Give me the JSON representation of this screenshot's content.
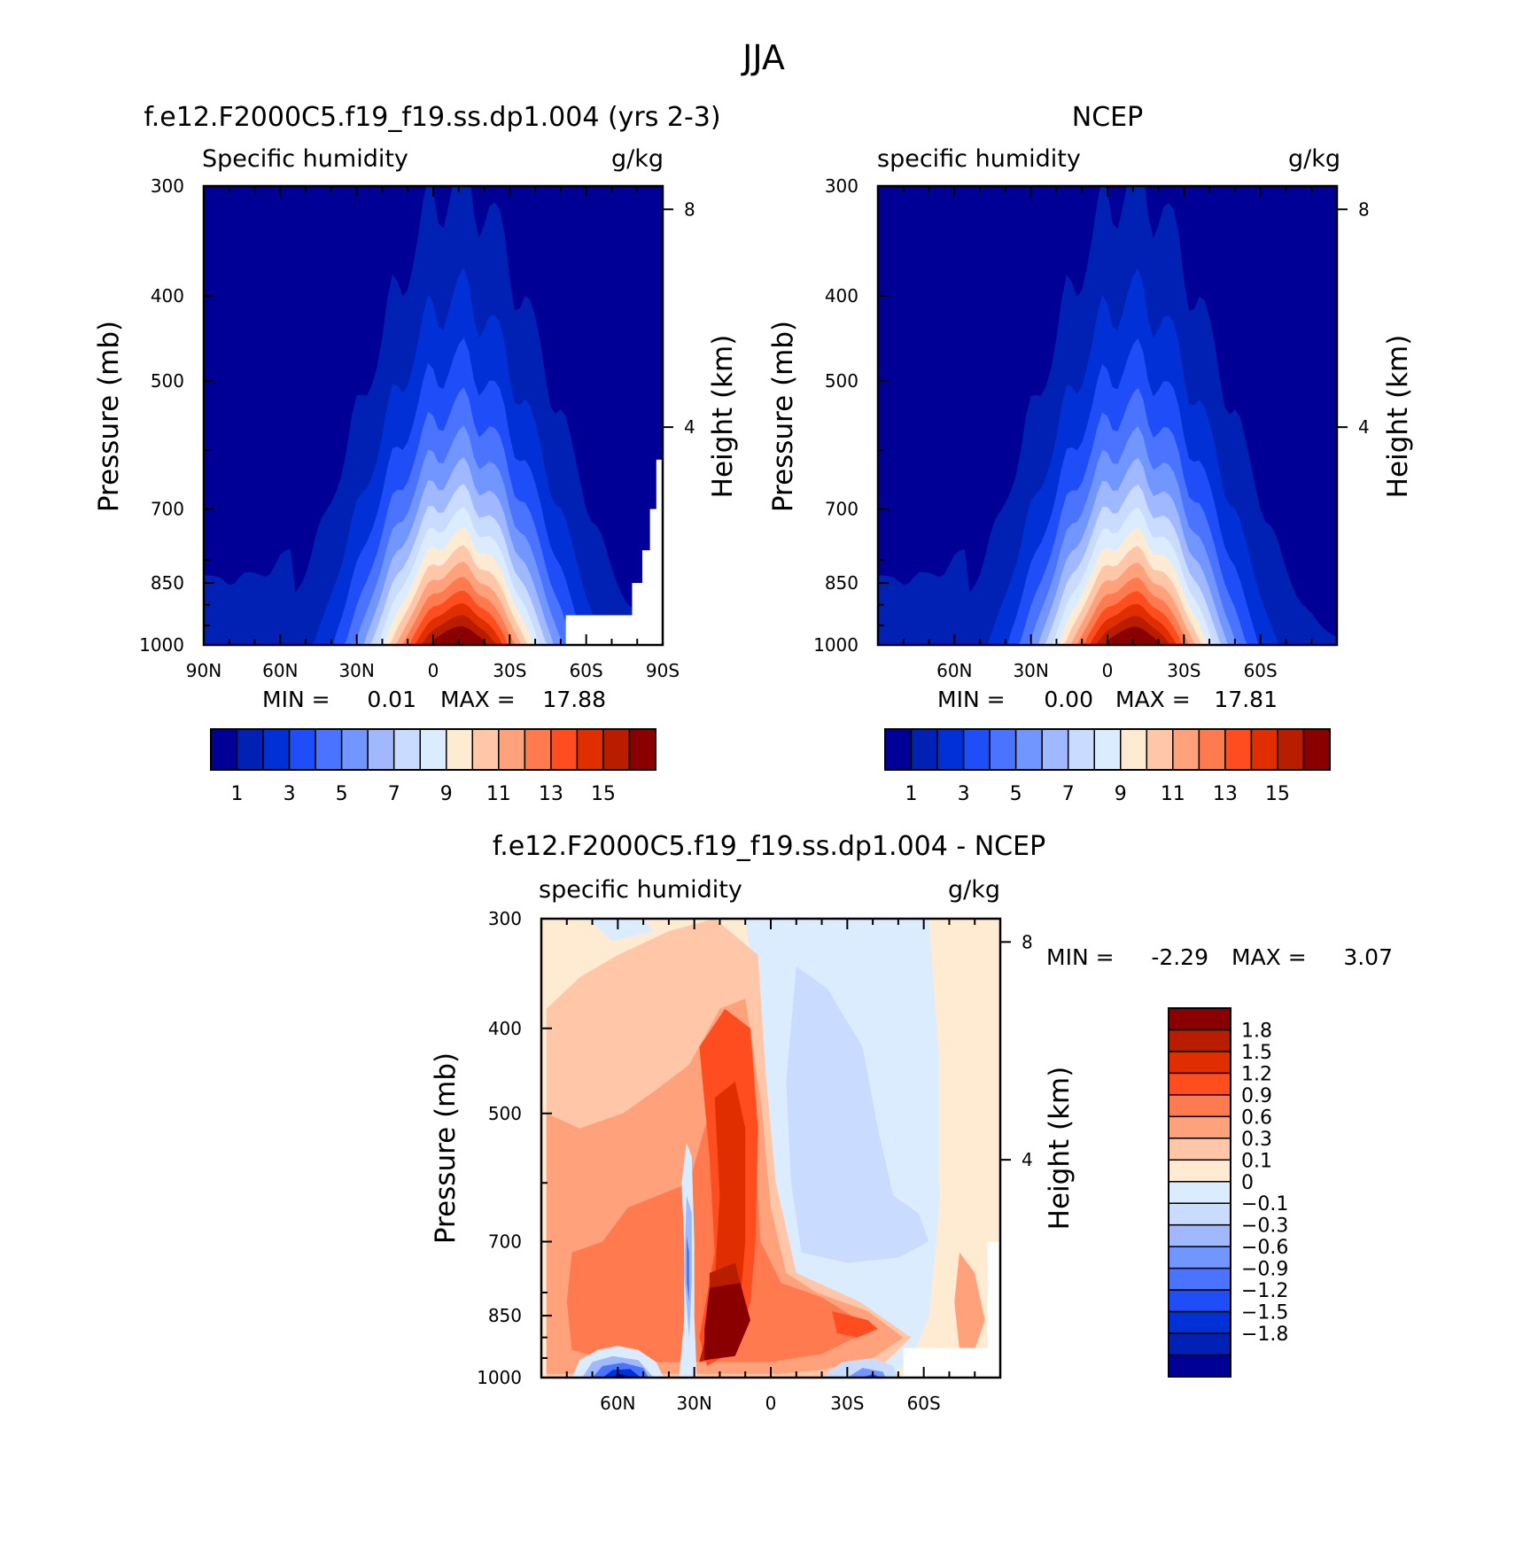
{
  "figure_title": "JJA",
  "colors": {
    "model_scale": [
      "#000096",
      "#0021b4",
      "#0030d6",
      "#1f4df8",
      "#4a74ff",
      "#7296ff",
      "#9fb8ff",
      "#c9dbff",
      "#dcecff",
      "#ffead2",
      "#ffc7a8",
      "#ffa27c",
      "#ff7a4e",
      "#ff4d1f",
      "#e02e00",
      "#b91d00",
      "#8a0000"
    ],
    "diff_scale": [
      "#000096",
      "#0021b4",
      "#0030d6",
      "#1f4df8",
      "#4a74ff",
      "#7296ff",
      "#9fb8ff",
      "#c9dbff",
      "#dcecff",
      "#ffead2",
      "#ffc7a8",
      "#ffa27c",
      "#ff7a4e",
      "#ff4d1f",
      "#e02e00",
      "#b91d00",
      "#8a0000"
    ]
  },
  "chart_data": [
    {
      "id": "model",
      "type": "heatmap",
      "title": "f.e12.F2000C5.f19_f19.ss.dp1.004 (yrs 2-3)",
      "subtitle_left": "Specific humidity",
      "subtitle_right": "g/kg",
      "ylabel": "Pressure (mb)",
      "ylabel_right": "Height (km)",
      "xlim": [
        90,
        -90
      ],
      "ylim": [
        1000,
        300
      ],
      "x_ticks": [
        {
          "value": 90,
          "label": "90N"
        },
        {
          "value": 60,
          "label": "60N"
        },
        {
          "value": 30,
          "label": "30N"
        },
        {
          "value": 0,
          "label": "0"
        },
        {
          "value": -30,
          "label": "30S"
        },
        {
          "value": -60,
          "label": "60S"
        },
        {
          "value": -90,
          "label": "90S"
        }
      ],
      "y_ticks": [
        {
          "value": 300,
          "label": "300"
        },
        {
          "value": 400,
          "label": "400"
        },
        {
          "value": 500,
          "label": "500"
        },
        {
          "value": 700,
          "label": "700"
        },
        {
          "value": 850,
          "label": "850"
        },
        {
          "value": 1000,
          "label": "1000"
        }
      ],
      "height_ticks": [
        {
          "value": 8,
          "label": "8"
        },
        {
          "value": 4,
          "label": "4"
        }
      ],
      "min_label": "MIN =",
      "min_value": "0.01",
      "max_label": "MAX =",
      "max_value": "17.88",
      "peak_lat": -10,
      "peak_value": 17.88,
      "colorbar": {
        "levels": [
          "1",
          "2",
          "3",
          "4",
          "5",
          "6",
          "7",
          "8",
          "9",
          "10",
          "11",
          "12",
          "13",
          "14",
          "15",
          "16"
        ],
        "labels": [
          "1",
          "3",
          "5",
          "7",
          "9",
          "11",
          "13",
          "15"
        ]
      }
    },
    {
      "id": "ncep",
      "type": "heatmap",
      "title": "NCEP",
      "subtitle_left": "specific humidity",
      "subtitle_right": "g/kg",
      "ylabel": "Pressure (mb)",
      "ylabel_right": "Height (km)",
      "xlim": [
        90,
        -90
      ],
      "ylim": [
        1000,
        300
      ],
      "x_ticks": [
        {
          "value": 60,
          "label": "60N"
        },
        {
          "value": 30,
          "label": "30N"
        },
        {
          "value": 0,
          "label": "0"
        },
        {
          "value": -30,
          "label": "30S"
        },
        {
          "value": -60,
          "label": "60S"
        }
      ],
      "y_ticks": [
        {
          "value": 300,
          "label": "300"
        },
        {
          "value": 400,
          "label": "400"
        },
        {
          "value": 500,
          "label": "500"
        },
        {
          "value": 700,
          "label": "700"
        },
        {
          "value": 850,
          "label": "850"
        },
        {
          "value": 1000,
          "label": "1000"
        }
      ],
      "height_ticks": [
        {
          "value": 8,
          "label": "8"
        },
        {
          "value": 4,
          "label": "4"
        }
      ],
      "min_label": "MIN =",
      "min_value": "0.00",
      "max_label": "MAX =",
      "max_value": "17.81",
      "peak_lat": -10,
      "peak_value": 17.81,
      "colorbar": {
        "levels": [
          "1",
          "2",
          "3",
          "4",
          "5",
          "6",
          "7",
          "8",
          "9",
          "10",
          "11",
          "12",
          "13",
          "14",
          "15",
          "16"
        ],
        "labels": [
          "1",
          "3",
          "5",
          "7",
          "9",
          "11",
          "13",
          "15"
        ]
      }
    },
    {
      "id": "diff",
      "type": "heatmap",
      "title": "f.e12.F2000C5.f19_f19.ss.dp1.004 - NCEP",
      "subtitle_left": "specific humidity",
      "subtitle_right": "g/kg",
      "ylabel": "Pressure (mb)",
      "ylabel_right": "Height (km)",
      "xlim": [
        90,
        -90
      ],
      "ylim": [
        1000,
        300
      ],
      "x_ticks": [
        {
          "value": 60,
          "label": "60N"
        },
        {
          "value": 30,
          "label": "30N"
        },
        {
          "value": 0,
          "label": "0"
        },
        {
          "value": -30,
          "label": "30S"
        },
        {
          "value": -60,
          "label": "60S"
        }
      ],
      "y_ticks": [
        {
          "value": 300,
          "label": "300"
        },
        {
          "value": 400,
          "label": "400"
        },
        {
          "value": 500,
          "label": "500"
        },
        {
          "value": 700,
          "label": "700"
        },
        {
          "value": 850,
          "label": "850"
        },
        {
          "value": 1000,
          "label": "1000"
        }
      ],
      "height_ticks": [
        {
          "value": 8,
          "label": "8"
        },
        {
          "value": 4,
          "label": "4"
        }
      ],
      "min_label": "MIN =",
      "min_value": "-2.29",
      "max_label": "MAX =",
      "max_value": "3.07",
      "colorbar": {
        "levels": [
          "-1.8",
          "-1.5",
          "-1.2",
          "-0.9",
          "-0.6",
          "-0.3",
          "-0.1",
          "0",
          "0.1",
          "0.3",
          "0.6",
          "0.9",
          "1.2",
          "1.5",
          "1.8"
        ],
        "labels": [
          "1.8",
          "1.5",
          "1.2",
          "0.9",
          "0.6",
          "0.3",
          "0.1",
          "0",
          "-0.1",
          "-0.3",
          "-0.6",
          "-0.9",
          "-1.2",
          "-1.5",
          "-1.8"
        ]
      }
    }
  ]
}
